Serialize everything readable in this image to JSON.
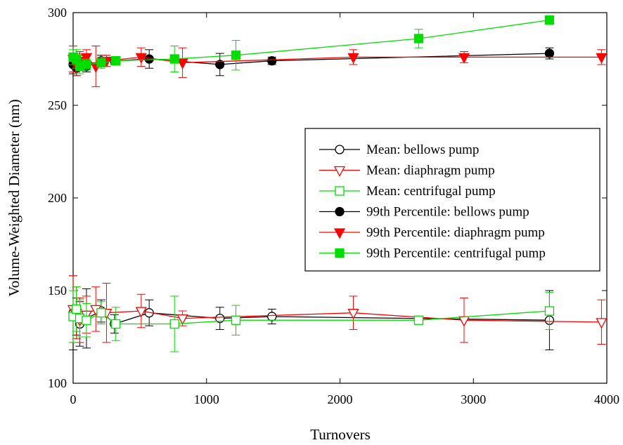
{
  "chart_data": {
    "type": "line",
    "title": "",
    "xlabel": "Turnovers",
    "ylabel": "Volume-Weighted Diameter (nm)",
    "xlim": [
      0,
      4000
    ],
    "ylim": [
      100,
      300
    ],
    "xticks": [
      0,
      1000,
      2000,
      3000,
      4000
    ],
    "yticks": [
      100,
      150,
      200,
      250,
      300
    ],
    "grid": false,
    "legend_position": "right-middle",
    "series": [
      {
        "name": "Mean:  bellows pump",
        "color": "#000000",
        "marker": "circle-open",
        "x": [
          0,
          25,
          50,
          100,
          210,
          310,
          570,
          1100,
          1490,
          3570
        ],
        "y": [
          138,
          136,
          132,
          135,
          139,
          132,
          138,
          135,
          136,
          134
        ],
        "err": [
          20,
          10,
          12,
          16,
          6,
          5,
          7,
          6,
          4,
          16
        ]
      },
      {
        "name": "Mean:  diaphragm pump",
        "color": "#ff0000",
        "marker": "triangle-down-open",
        "x": [
          0,
          25,
          50,
          100,
          170,
          250,
          510,
          820,
          2100,
          2930,
          3960
        ],
        "y": [
          140,
          138,
          134,
          137,
          140,
          138,
          139,
          135,
          138,
          134,
          133
        ],
        "err": [
          18,
          14,
          12,
          10,
          12,
          16,
          9,
          4,
          9,
          12,
          12
        ]
      },
      {
        "name": "Mean:  centrifugal pump",
        "color": "#00dd00",
        "marker": "square-open",
        "x": [
          0,
          25,
          50,
          100,
          210,
          320,
          760,
          1220,
          2590,
          3570
        ],
        "y": [
          136,
          140,
          135,
          134,
          138,
          132,
          132,
          134,
          134,
          139
        ],
        "err": [
          14,
          12,
          10,
          9,
          6,
          9,
          15,
          8,
          2,
          10
        ]
      },
      {
        "name": "99th Percentile:  bellows pump",
        "color": "#000000",
        "marker": "circle-filled",
        "x": [
          0,
          25,
          50,
          100,
          210,
          310,
          570,
          1100,
          1490,
          3570
        ],
        "y": [
          272,
          270,
          273,
          271,
          274,
          274,
          275,
          272,
          274,
          278
        ],
        "err": [
          5,
          4,
          4,
          3,
          3,
          2,
          5,
          6,
          2,
          3
        ]
      },
      {
        "name": "99th Percentile:  diaphragm pump",
        "color": "#ff0000",
        "marker": "triangle-down-filled",
        "x": [
          0,
          25,
          50,
          100,
          170,
          250,
          510,
          820,
          2100,
          2930,
          3960
        ],
        "y": [
          275,
          272,
          274,
          276,
          271,
          274,
          276,
          273,
          276,
          276,
          276
        ],
        "err": [
          7,
          6,
          5,
          4,
          11,
          3,
          5,
          8,
          4,
          3,
          4
        ]
      },
      {
        "name": "99th Percentile:  centrifugal pump",
        "color": "#00dd00",
        "marker": "square-filled",
        "x": [
          0,
          25,
          50,
          100,
          210,
          320,
          760,
          1220,
          2590,
          3570
        ],
        "y": [
          276,
          275,
          271,
          272,
          273,
          274,
          275,
          277,
          286,
          296
        ],
        "err": [
          4,
          5,
          4,
          3,
          3,
          2,
          7,
          8,
          5,
          1
        ]
      }
    ]
  }
}
